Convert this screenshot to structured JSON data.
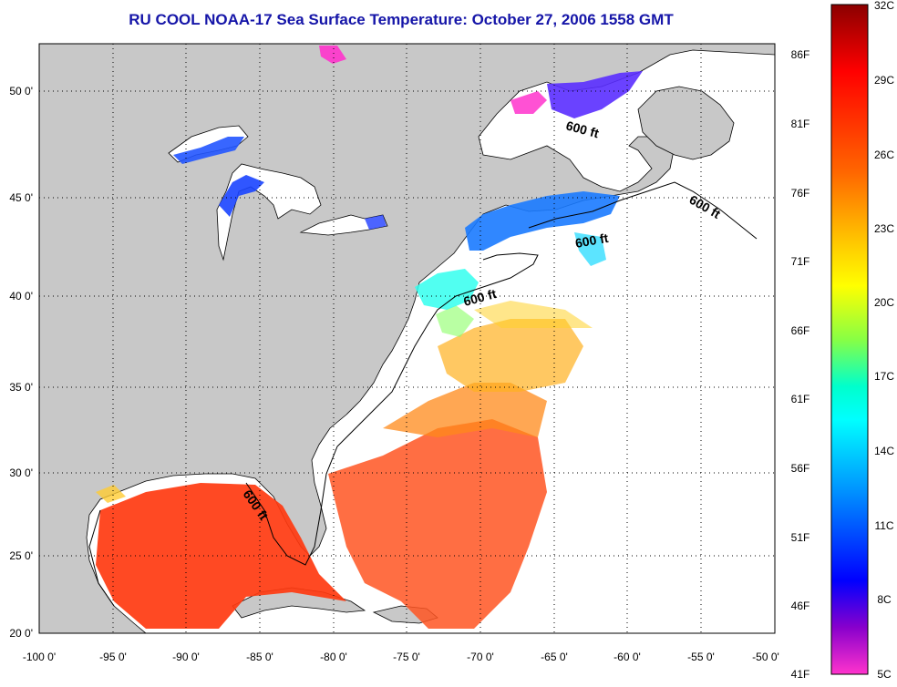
{
  "title": "RU COOL  NOAA-17  Sea Surface Temperature:  October 27, 2006 1558 GMT",
  "map": {
    "lon_labels": [
      "-100 0'",
      "-95 0'",
      "-90 0'",
      "-85 0'",
      "-80 0'",
      "-75 0'",
      "-70 0'",
      "-65 0'",
      "-60 0'",
      "-55 0'",
      "-50 0'"
    ],
    "lat_labels": [
      "20 0'",
      "25 0'",
      "30 0'",
      "35 0'",
      "40 0'",
      "45 0'",
      "50 0'"
    ],
    "lon_range": [
      -100,
      -50
    ],
    "lat_range": [
      20,
      52.5
    ],
    "depth_contour_labels": [
      "600 ft",
      "600 ft",
      "600 ft",
      "600 ft",
      "600 ft"
    ],
    "colors": {
      "land": "#c8c8c8",
      "water_no_data": "#ffffff",
      "grid": "#000000"
    }
  },
  "colorbar": {
    "fahrenheit_labels": [
      "86F",
      "81F",
      "76F",
      "71F",
      "66F",
      "61F",
      "56F",
      "51F",
      "46F",
      "41F"
    ],
    "celsius_labels": [
      "32C",
      "29C",
      "26C",
      "23C",
      "20C",
      "17C",
      "14C",
      "11C",
      "8C",
      "5C"
    ],
    "range_c": [
      5,
      32
    ],
    "gradient_stops": [
      "#8b0000",
      "#ff0000",
      "#ff6600",
      "#ffcc00",
      "#ffff00",
      "#88ff44",
      "#00ffcc",
      "#00ffff",
      "#0099ff",
      "#0000ff",
      "#8800cc",
      "#ff33cc"
    ]
  }
}
